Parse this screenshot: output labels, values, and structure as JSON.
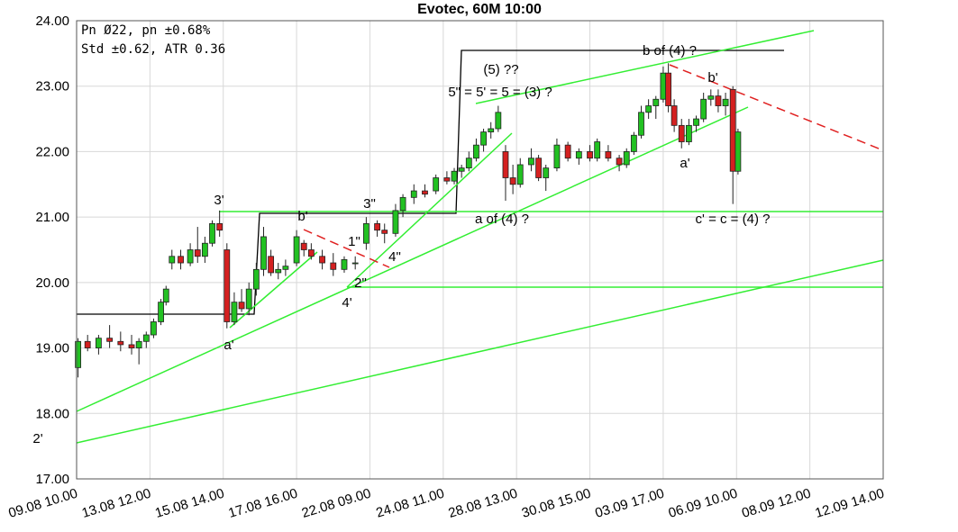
{
  "chart_data": {
    "type": "candlestick",
    "title": "Evotec, 60M 10:00",
    "info_lines": [
      "Pn  Ø22, pn ±0.68%",
      "Std ±0.62, ATR 0.36"
    ],
    "annotations": [
      "3'",
      "b'",
      "3\"",
      "1\"",
      "4\"",
      "2\"",
      "4'",
      "a'",
      "2'",
      "(5) ??",
      "5\" = 5' = 5 = (3) ?",
      "a of (4) ?",
      "b of (4) ?",
      "b'",
      "a'",
      "c' = c = (4) ?"
    ],
    "up_color": "#22c122",
    "down_color": "#d42020",
    "x": [
      0.02,
      0.15,
      0.3,
      0.45,
      0.6,
      0.75,
      0.85,
      0.95,
      1.05,
      1.15,
      1.22,
      1.3,
      1.42,
      1.55,
      1.65,
      1.75,
      1.85,
      1.95,
      2.05,
      2.15,
      2.25,
      2.35,
      2.45,
      2.55,
      2.65,
      2.75,
      2.85,
      3.0,
      3.1,
      3.2,
      3.35,
      3.5,
      3.65,
      3.8,
      3.95,
      4.1,
      4.2,
      4.35,
      4.45,
      4.6,
      4.75,
      4.9,
      5.05,
      5.15,
      5.25,
      5.35,
      5.45,
      5.55,
      5.65,
      5.75,
      5.85,
      5.95,
      6.05,
      6.2,
      6.3,
      6.4,
      6.55,
      6.7,
      6.85,
      7.0,
      7.1,
      7.25,
      7.4,
      7.5,
      7.6,
      7.7,
      7.8,
      7.9,
      8.0,
      8.07,
      8.15,
      8.25,
      8.35,
      8.45,
      8.55,
      8.65,
      8.75,
      8.85,
      8.95,
      9.02
    ],
    "open": [
      18.7,
      19.1,
      19.0,
      19.15,
      19.1,
      19.05,
      19.0,
      19.1,
      19.2,
      19.4,
      19.7,
      20.3,
      20.4,
      20.3,
      20.5,
      20.4,
      20.6,
      20.9,
      20.5,
      19.4,
      19.7,
      19.6,
      19.9,
      20.2,
      20.4,
      20.15,
      20.2,
      20.3,
      20.6,
      20.5,
      20.4,
      20.3,
      20.2,
      20.3,
      20.6,
      20.9,
      20.8,
      20.75,
      21.1,
      21.3,
      21.4,
      21.4,
      21.6,
      21.55,
      21.7,
      21.75,
      21.9,
      22.1,
      22.3,
      22.35,
      22.0,
      21.6,
      21.5,
      21.8,
      21.9,
      21.6,
      21.75,
      22.1,
      21.9,
      22.0,
      21.9,
      22.0,
      21.9,
      21.8,
      22.0,
      22.25,
      22.6,
      22.7,
      22.8,
      23.2,
      22.7,
      22.4,
      22.15,
      22.4,
      22.5,
      22.8,
      22.85,
      22.7,
      22.95,
      21.7
    ],
    "high": [
      19.15,
      19.2,
      19.2,
      19.35,
      19.25,
      19.2,
      19.15,
      19.25,
      19.45,
      19.75,
      19.95,
      20.5,
      20.5,
      20.6,
      20.85,
      20.7,
      20.95,
      21.1,
      20.6,
      19.85,
      19.9,
      20.0,
      20.3,
      20.85,
      20.5,
      20.3,
      20.35,
      20.8,
      20.65,
      20.6,
      20.5,
      20.45,
      20.4,
      20.4,
      21.0,
      20.95,
      20.9,
      21.2,
      21.35,
      21.5,
      21.5,
      21.65,
      21.7,
      21.75,
      21.8,
      22.0,
      22.2,
      22.35,
      22.45,
      22.7,
      22.1,
      21.8,
      21.9,
      22.05,
      21.95,
      21.8,
      22.2,
      22.15,
      22.05,
      22.1,
      22.2,
      22.1,
      21.95,
      22.05,
      22.3,
      22.7,
      22.8,
      22.85,
      23.3,
      23.35,
      22.8,
      22.5,
      22.5,
      22.55,
      22.9,
      22.95,
      22.95,
      22.9,
      23.0,
      22.35
    ],
    "low": [
      18.55,
      18.95,
      18.9,
      19.0,
      18.95,
      18.9,
      18.75,
      19.0,
      19.15,
      19.35,
      19.65,
      20.2,
      20.2,
      20.25,
      20.3,
      20.3,
      20.55,
      20.7,
      19.3,
      19.35,
      19.55,
      19.5,
      19.8,
      20.1,
      20.1,
      20.05,
      20.1,
      20.25,
      20.4,
      20.35,
      20.2,
      20.1,
      20.15,
      20.2,
      20.5,
      20.7,
      20.6,
      20.7,
      21.0,
      21.2,
      21.3,
      21.35,
      21.5,
      21.5,
      21.6,
      21.7,
      21.85,
      22.0,
      22.2,
      22.3,
      21.25,
      21.35,
      21.45,
      21.7,
      21.55,
      21.4,
      21.7,
      21.85,
      21.8,
      21.85,
      21.85,
      21.85,
      21.7,
      21.75,
      21.95,
      22.2,
      22.5,
      22.5,
      22.75,
      22.6,
      22.3,
      22.05,
      22.1,
      22.3,
      22.45,
      22.7,
      22.6,
      22.55,
      21.2,
      21.65
    ],
    "close": [
      19.1,
      19.0,
      19.15,
      19.1,
      19.05,
      19.0,
      19.1,
      19.2,
      19.4,
      19.7,
      19.9,
      20.4,
      20.3,
      20.5,
      20.4,
      20.6,
      20.9,
      20.8,
      19.4,
      19.7,
      19.6,
      19.9,
      20.2,
      20.7,
      20.15,
      20.2,
      20.25,
      20.7,
      20.5,
      20.4,
      20.3,
      20.2,
      20.35,
      20.3,
      20.9,
      20.8,
      20.75,
      21.1,
      21.3,
      21.4,
      21.35,
      21.6,
      21.55,
      21.7,
      21.75,
      21.9,
      22.1,
      22.3,
      22.35,
      22.6,
      21.6,
      21.5,
      21.8,
      21.9,
      21.6,
      21.75,
      22.1,
      21.9,
      22.0,
      21.9,
      22.15,
      21.9,
      21.8,
      22.0,
      22.25,
      22.6,
      22.7,
      22.8,
      23.2,
      22.7,
      22.4,
      22.15,
      22.4,
      22.5,
      22.8,
      22.85,
      22.7,
      22.8,
      21.7,
      22.3
    ],
    "xlim": [
      0,
      11
    ],
    "ylim": [
      17,
      24
    ],
    "xticks": [
      {
        "value": 0,
        "label": "09.08 10.00"
      },
      {
        "value": 1,
        "label": "13.08 12.00"
      },
      {
        "value": 2,
        "label": "15.08 14.00"
      },
      {
        "value": 3,
        "label": "17.08 16.00"
      },
      {
        "value": 4,
        "label": "22.08 09.00"
      },
      {
        "value": 5,
        "label": "24.08 11.00"
      },
      {
        "value": 6,
        "label": "28.08 13.00"
      },
      {
        "value": 7,
        "label": "30.08 15.00"
      },
      {
        "value": 8,
        "label": "03.09 17.00"
      },
      {
        "value": 9,
        "label": "06.09 10.00"
      },
      {
        "value": 10,
        "label": "08.09 12.00"
      },
      {
        "value": 11,
        "label": "12.09 14.00"
      }
    ],
    "yticks": [
      {
        "value": 17,
        "label": "17.00"
      },
      {
        "value": 18,
        "label": "18.00"
      },
      {
        "value": 19,
        "label": "19.00"
      },
      {
        "value": 20,
        "label": "20.00"
      },
      {
        "value": 21,
        "label": "21.00"
      },
      {
        "value": 22,
        "label": "22.00"
      },
      {
        "value": 23,
        "label": "23.00"
      },
      {
        "value": 24,
        "label": "24.00"
      }
    ],
    "grid": true
  }
}
